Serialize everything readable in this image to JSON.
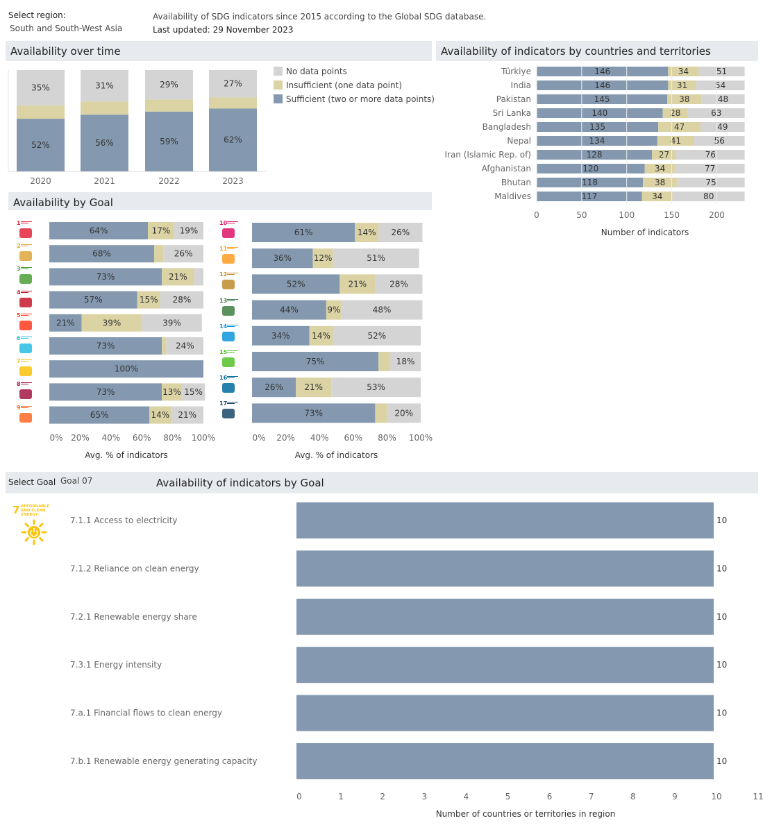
{
  "header": {
    "select_region_label": "Select region:",
    "region_value": "South and South-West Asia",
    "description": "Availability of SDG indicators since 2015 according to the Global SDG database.",
    "last_updated_label": "Last updated:",
    "last_updated_value": "29 November 2023"
  },
  "colors": {
    "sufficient": "#8499af",
    "insufficient": "#dbd3a4",
    "none": "#d4d4d4",
    "band": "#e7eaee"
  },
  "over_time": {
    "title": "Availability over time",
    "legend": [
      "No data points",
      "Insufficient (one data point)",
      "Sufficient (two or more data points)"
    ],
    "chart_data": {
      "type": "bar",
      "categories": [
        "2020",
        "2021",
        "2022",
        "2023"
      ],
      "series": [
        {
          "name": "Sufficient (two or more data points)",
          "values": [
            52,
            56,
            59,
            62
          ],
          "labels": [
            "52%",
            "56%",
            "59%",
            "62%"
          ]
        },
        {
          "name": "Insufficient (one data point)",
          "values": [
            13,
            13,
            12,
            11
          ],
          "labels": [
            "",
            "",
            "",
            ""
          ]
        },
        {
          "name": "No data points",
          "values": [
            35,
            31,
            29,
            27
          ],
          "labels": [
            "35%",
            "31%",
            "29%",
            "27%"
          ]
        }
      ],
      "stacked": true,
      "ylim": [
        0,
        100
      ]
    }
  },
  "by_country": {
    "title": "Availability of indicators by countries and territories",
    "xlabel": "Number of indicators",
    "chart_data": {
      "type": "bar",
      "orientation": "horizontal",
      "stacked": true,
      "categories": [
        "Türkiye",
        "India",
        "Pakistan",
        "Sri Lanka",
        "Bangladesh",
        "Nepal",
        "Iran (Islamic Rep. of)",
        "Afghanistan",
        "Bhutan",
        "Maldives"
      ],
      "series": [
        {
          "name": "Sufficient (two or more data points)",
          "values": [
            146,
            146,
            145,
            140,
            135,
            134,
            128,
            120,
            118,
            117
          ]
        },
        {
          "name": "Insufficient (one data point)",
          "values": [
            34,
            31,
            38,
            28,
            47,
            41,
            27,
            34,
            38,
            34
          ]
        },
        {
          "name": "No data points",
          "values": [
            51,
            54,
            48,
            63,
            49,
            56,
            76,
            77,
            75,
            80
          ]
        }
      ],
      "xticks": [
        "0",
        "50",
        "100",
        "150",
        "200"
      ],
      "xlim": [
        0,
        231
      ]
    }
  },
  "by_goal": {
    "title": "Availability by Goal",
    "xlabel": "Avg. % of indicators",
    "xticks": [
      "0%",
      "20%",
      "40%",
      "60%",
      "80%",
      "100%"
    ],
    "chart_data": [
      {
        "type": "bar",
        "orientation": "horizontal",
        "stacked": true,
        "categories": [
          "Goal 1",
          "Goal 2",
          "Goal 3",
          "Goal 4",
          "Goal 5",
          "Goal 6",
          "Goal 7",
          "Goal 8",
          "Goal 9"
        ],
        "series": [
          {
            "name": "Sufficient (two or more data points)",
            "values": [
              64,
              68,
              73,
              57,
              21,
              73,
              100,
              73,
              65
            ],
            "labels": [
              "64%",
              "68%",
              "73%",
              "57%",
              "21%",
              "73%",
              "100%",
              "73%",
              "65%"
            ]
          },
          {
            "name": "Insufficient (one data point)",
            "values": [
              17,
              6,
              21,
              15,
              39,
              3,
              0,
              13,
              14
            ],
            "labels": [
              "17%",
              "",
              "21%",
              "15%",
              "39%",
              "",
              "",
              "13%",
              "14%"
            ]
          },
          {
            "name": "No data points",
            "values": [
              19,
              26,
              6,
              28,
              39,
              24,
              0,
              15,
              21
            ],
            "labels": [
              "19%",
              "26%",
              "",
              "28%",
              "39%",
              "24%",
              "",
              "15%",
              "21%"
            ]
          }
        ]
      },
      {
        "type": "bar",
        "orientation": "horizontal",
        "stacked": true,
        "categories": [
          "Goal 10",
          "Goal 11",
          "Goal 12",
          "Goal 13",
          "Goal 14",
          "Goal 15",
          "Goal 16",
          "Goal 17"
        ],
        "series": [
          {
            "name": "Sufficient (two or more data points)",
            "values": [
              61,
              36,
              52,
              44,
              34,
              75,
              26,
              73
            ],
            "labels": [
              "61%",
              "36%",
              "52%",
              "44%",
              "34%",
              "75%",
              "26%",
              "73%"
            ]
          },
          {
            "name": "Insufficient (one data point)",
            "values": [
              14,
              12,
              21,
              9,
              14,
              7,
              21,
              7
            ],
            "labels": [
              "14%",
              "12%",
              "21%",
              "9%",
              "14%",
              "",
              "21%",
              ""
            ]
          },
          {
            "name": "No data points",
            "values": [
              26,
              51,
              28,
              48,
              52,
              18,
              53,
              20
            ],
            "labels": [
              "26%",
              "51%",
              "28%",
              "48%",
              "52%",
              "18%",
              "53%",
              "20%"
            ]
          }
        ]
      }
    ],
    "goals": [
      {
        "num": "1",
        "color": "#e5243b",
        "icon": "no-poverty-icon"
      },
      {
        "num": "2",
        "color": "#dda63a",
        "icon": "zero-hunger-icon"
      },
      {
        "num": "3",
        "color": "#4c9f38",
        "icon": "good-health-icon"
      },
      {
        "num": "4",
        "color": "#c5192d",
        "icon": "quality-education-icon"
      },
      {
        "num": "5",
        "color": "#ff3a21",
        "icon": "gender-equality-icon"
      },
      {
        "num": "6",
        "color": "#26bde2",
        "icon": "clean-water-icon"
      },
      {
        "num": "7",
        "color": "#fcc30b",
        "icon": "clean-energy-icon"
      },
      {
        "num": "8",
        "color": "#a21942",
        "icon": "decent-work-icon"
      },
      {
        "num": "9",
        "color": "#fd6925",
        "icon": "industry-icon"
      },
      {
        "num": "10",
        "color": "#dd1367",
        "icon": "reduced-inequalities-icon"
      },
      {
        "num": "11",
        "color": "#fd9d24",
        "icon": "sustainable-cities-icon"
      },
      {
        "num": "12",
        "color": "#bf8b2e",
        "icon": "responsible-consumption-icon"
      },
      {
        "num": "13",
        "color": "#3f7e44",
        "icon": "climate-action-icon"
      },
      {
        "num": "14",
        "color": "#0a97d9",
        "icon": "life-below-water-icon"
      },
      {
        "num": "15",
        "color": "#56c02b",
        "icon": "life-on-land-icon"
      },
      {
        "num": "16",
        "color": "#00689d",
        "icon": "peace-justice-icon"
      },
      {
        "num": "17",
        "color": "#19486a",
        "icon": "partnerships-icon"
      }
    ]
  },
  "goal_detail": {
    "select_goal_label": "Select Goal",
    "select_goal_value": "Goal 07",
    "title": "Availability of indicators by Goal",
    "goal_num": "7",
    "goal_name": "AFFORDABLE AND CLEAN ENERGY",
    "xlabel": "Number of countries or territories in region",
    "chart_data": {
      "type": "bar",
      "orientation": "horizontal",
      "categories": [
        "7.1.1 Access to electricity",
        "7.1.2 Reliance on clean energy",
        "7.2.1 Renewable energy share",
        "7.3.1 Energy intensity",
        "7.a.1 Financial flows to clean energy",
        "7.b.1 Renewable energy generating capacity"
      ],
      "values": [
        10,
        10,
        10,
        10,
        10,
        10
      ],
      "labels": [
        "10",
        "10",
        "10",
        "10",
        "10",
        "10"
      ],
      "xticks": [
        "0",
        "1",
        "2",
        "3",
        "4",
        "5",
        "6",
        "7",
        "8",
        "9",
        "10",
        "11"
      ],
      "xlim": [
        0,
        11
      ]
    }
  }
}
